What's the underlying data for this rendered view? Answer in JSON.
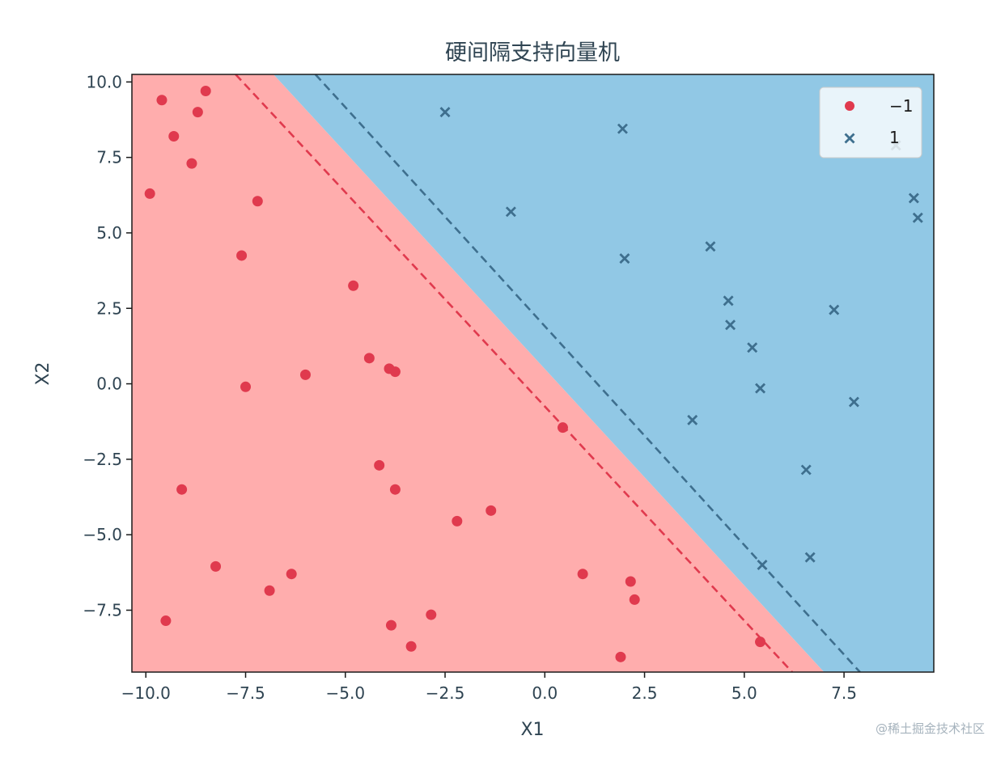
{
  "chart_data": {
    "type": "scatter",
    "title": "硬间隔支持向量机",
    "xlabel": "X1",
    "ylabel": "X2",
    "xlim": [
      -10.35,
      9.75
    ],
    "ylim": [
      -9.55,
      10.25
    ],
    "xticks": [
      -10.0,
      -7.5,
      -5.0,
      -2.5,
      0.0,
      2.5,
      5.0,
      7.5
    ],
    "xtick_labels": [
      "−10.0",
      "−7.5",
      "−5.0",
      "−2.5",
      "0.0",
      "2.5",
      "5.0",
      "7.5"
    ],
    "yticks": [
      -7.5,
      -5.0,
      -2.5,
      0.0,
      2.5,
      5.0,
      7.5,
      10.0
    ],
    "ytick_labels": [
      "−7.5",
      "−5.0",
      "−2.5",
      "0.0",
      "2.5",
      "5.0",
      "7.5",
      "10.0"
    ],
    "grid": false,
    "legend_position": "top-right",
    "decision_regions": {
      "negative_color": "#ffadad",
      "positive_color": "#91c8e5",
      "boundary_line": [
        [
          -6.8,
          10.25
        ],
        [
          7.0,
          -9.55
        ]
      ]
    },
    "margin_lines": [
      {
        "class": "-1",
        "color": "#e03a4e",
        "style": "dashed",
        "points": [
          [
            -7.75,
            10.25
          ],
          [
            6.2,
            -9.55
          ]
        ]
      },
      {
        "class": "1",
        "color": "#3e6f8e",
        "style": "dashed",
        "points": [
          [
            -5.75,
            10.25
          ],
          [
            7.9,
            -9.55
          ]
        ]
      }
    ],
    "series": [
      {
        "name": "−1",
        "marker": "circle",
        "color": "#e03a4e",
        "points": [
          [
            -8.5,
            9.7
          ],
          [
            -9.6,
            9.4
          ],
          [
            -8.7,
            9.0
          ],
          [
            -9.3,
            8.2
          ],
          [
            -8.85,
            7.3
          ],
          [
            -9.9,
            6.3
          ],
          [
            -7.2,
            6.05
          ],
          [
            -7.6,
            4.25
          ],
          [
            -4.8,
            3.25
          ],
          [
            -4.4,
            0.85
          ],
          [
            -3.9,
            0.5
          ],
          [
            -3.75,
            0.4
          ],
          [
            -6.0,
            0.3
          ],
          [
            -7.5,
            -0.1
          ],
          [
            0.45,
            -1.45
          ],
          [
            -4.15,
            -2.7
          ],
          [
            -9.1,
            -3.5
          ],
          [
            -3.75,
            -3.5
          ],
          [
            -1.35,
            -4.2
          ],
          [
            -2.2,
            -4.55
          ],
          [
            -8.25,
            -6.05
          ],
          [
            -6.35,
            -6.3
          ],
          [
            -6.9,
            -6.85
          ],
          [
            0.95,
            -6.3
          ],
          [
            2.15,
            -6.55
          ],
          [
            2.25,
            -7.15
          ],
          [
            -9.5,
            -7.85
          ],
          [
            -3.85,
            -8.0
          ],
          [
            -2.85,
            -7.65
          ],
          [
            -3.35,
            -8.7
          ],
          [
            5.4,
            -8.55
          ],
          [
            1.9,
            -9.05
          ]
        ]
      },
      {
        "name": "1",
        "marker": "x",
        "color": "#3e6f8e",
        "points": [
          [
            -2.5,
            9.0
          ],
          [
            1.95,
            8.45
          ],
          [
            8.8,
            7.9
          ],
          [
            -0.85,
            5.7
          ],
          [
            9.25,
            6.15
          ],
          [
            9.35,
            5.5
          ],
          [
            4.15,
            4.55
          ],
          [
            2.0,
            4.15
          ],
          [
            4.6,
            2.75
          ],
          [
            7.25,
            2.45
          ],
          [
            4.65,
            1.95
          ],
          [
            5.2,
            1.2
          ],
          [
            5.4,
            -0.15
          ],
          [
            7.75,
            -0.6
          ],
          [
            3.7,
            -1.2
          ],
          [
            6.55,
            -2.85
          ],
          [
            6.65,
            -5.75
          ],
          [
            5.45,
            -6.0
          ]
        ]
      }
    ]
  },
  "watermark": "@稀土掘金技术社区"
}
